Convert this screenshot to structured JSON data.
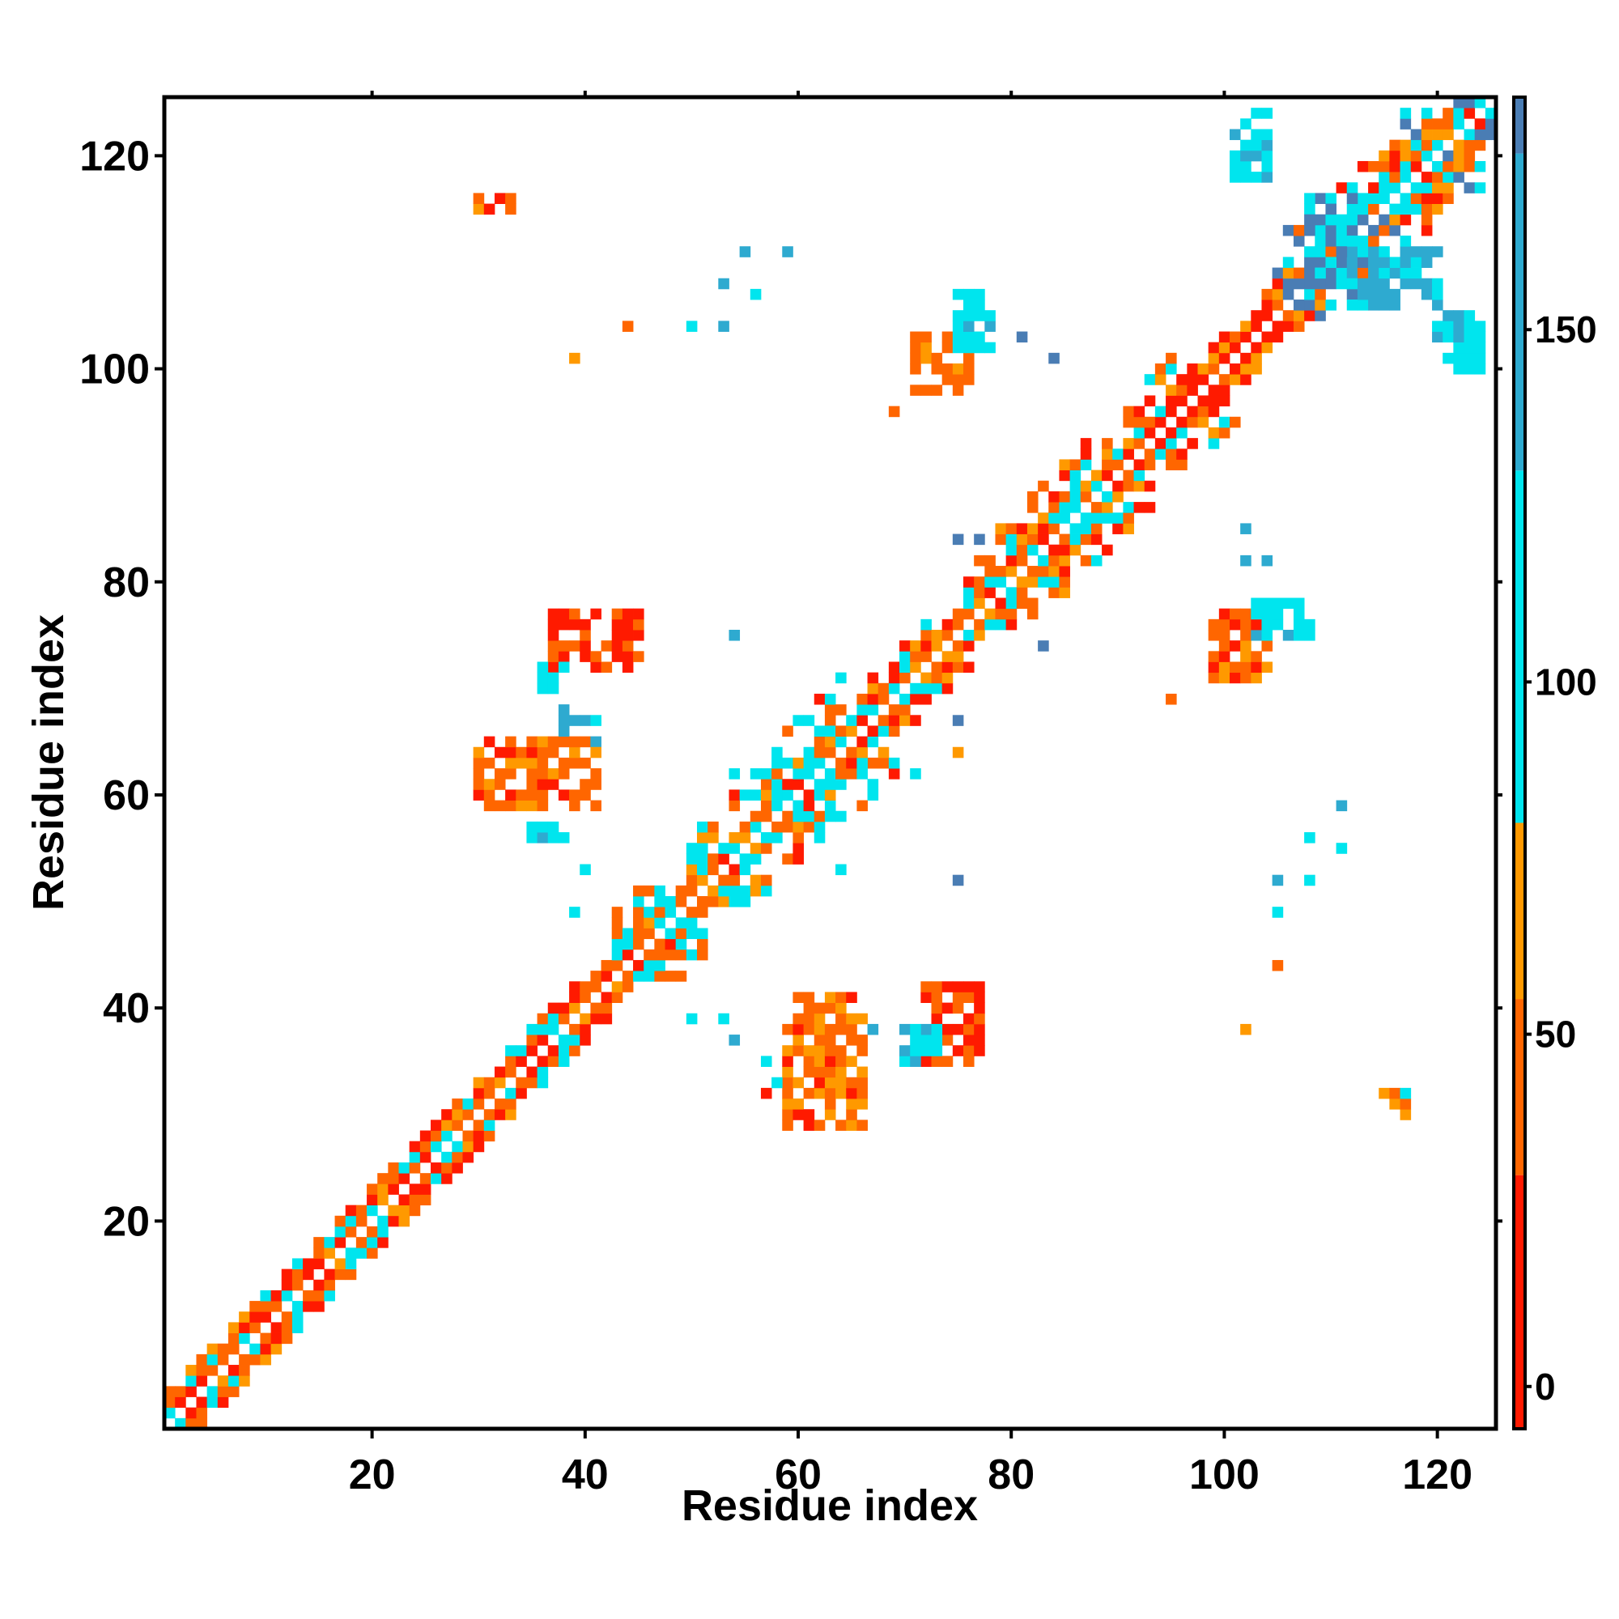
{
  "chart_data": {
    "type": "heatmap",
    "xlabel": "Residue index",
    "ylabel": "Residue index",
    "xlim": [
      1,
      125
    ],
    "ylim": [
      1,
      125
    ],
    "xticks": [
      20,
      40,
      60,
      80,
      100,
      120
    ],
    "yticks": [
      20,
      40,
      60,
      80,
      100,
      120
    ],
    "colorbar": {
      "range": [
        -6,
        183
      ],
      "ticks": [
        0,
        50,
        100,
        150
      ],
      "bands": [
        {
          "from": -6,
          "to": 30,
          "color": "#ff1a00"
        },
        {
          "from": 30,
          "to": 55,
          "color": "#ff6600"
        },
        {
          "from": 55,
          "to": 80,
          "color": "#ff9900"
        },
        {
          "from": 80,
          "to": 130,
          "color": "#00e5ee"
        },
        {
          "from": 130,
          "to": 175,
          "color": "#2eaad0"
        },
        {
          "from": 175,
          "to": 183,
          "color": "#4a7db4"
        }
      ]
    },
    "colors": {
      "red": "#ff1a00",
      "orange": "#ff6600",
      "amber": "#ff9900",
      "cyan": "#00e5ee",
      "skyblue": "#2eaad0",
      "steelblue": "#4a7db4"
    },
    "diagonal_bands": [
      {
        "from": 1,
        "to": 43,
        "mix": [
          "red",
          "orange",
          "orange",
          "amber",
          "red",
          "orange",
          "cyan"
        ],
        "width": 3
      },
      {
        "from": 43,
        "to": 63,
        "mix": [
          "orange",
          "cyan",
          "amber",
          "orange",
          "cyan",
          "red",
          "cyan"
        ],
        "width": 7
      },
      {
        "from": 63,
        "to": 76,
        "mix": [
          "red",
          "orange",
          "cyan",
          "amber",
          "orange"
        ],
        "width": 4
      },
      {
        "from": 76,
        "to": 95,
        "mix": [
          "orange",
          "cyan",
          "amber",
          "orange",
          "cyan",
          "red"
        ],
        "width": 6
      },
      {
        "from": 95,
        "to": 105,
        "mix": [
          "red",
          "orange",
          "amber",
          "red"
        ],
        "width": 3
      },
      {
        "from": 105,
        "to": 125,
        "mix": [
          "orange",
          "cyan",
          "amber",
          "red",
          "cyan",
          "steelblue"
        ],
        "width": 7
      }
    ],
    "off_diagonal_patches": [
      {
        "x": [
          30,
          33
        ],
        "y": [
          115,
          116
        ],
        "color": "orange"
      },
      {
        "x": [
          37,
          45
        ],
        "y": [
          72,
          77
        ],
        "color": "red"
      },
      {
        "x": [
          36,
          38
        ],
        "y": [
          70,
          72
        ],
        "color": "cyan"
      },
      {
        "x": [
          38,
          41
        ],
        "y": [
          65,
          68
        ],
        "color": "skyblue"
      },
      {
        "x": [
          30,
          41
        ],
        "y": [
          59,
          65
        ],
        "color": "orange"
      },
      {
        "x": [
          35,
          38
        ],
        "y": [
          56,
          57
        ],
        "color": "cyan"
      },
      {
        "x": [
          59,
          66
        ],
        "y": [
          29,
          41
        ],
        "color": "orange"
      },
      {
        "x": [
          72,
          77
        ],
        "y": [
          35,
          42
        ],
        "color": "red"
      },
      {
        "x": [
          70,
          73
        ],
        "y": [
          35,
          38
        ],
        "color": "cyan"
      },
      {
        "x": [
          99,
          104
        ],
        "y": [
          71,
          77
        ],
        "color": "orange"
      },
      {
        "x": [
          103,
          108
        ],
        "y": [
          75,
          78
        ],
        "color": "cyan"
      },
      {
        "x": [
          71,
          76
        ],
        "y": [
          98,
          103
        ],
        "color": "orange"
      },
      {
        "x": [
          75,
          78
        ],
        "y": [
          102,
          107
        ],
        "color": "cyan"
      },
      {
        "x": [
          101,
          104
        ],
        "y": [
          118,
          124
        ],
        "color": "cyan"
      },
      {
        "x": [
          108,
          113
        ],
        "y": [
          108,
          116
        ],
        "color": "steelblue"
      },
      {
        "x": [
          112,
          120
        ],
        "y": [
          106,
          111
        ],
        "color": "skyblue"
      },
      {
        "x": [
          120,
          124
        ],
        "y": [
          100,
          105
        ],
        "color": "cyan"
      },
      {
        "x": [
          115,
          117
        ],
        "y": [
          30,
          32
        ],
        "color": "orange"
      }
    ],
    "scattered_cells": [
      {
        "x": 69,
        "y": 96,
        "color": "orange"
      },
      {
        "x": 55,
        "y": 111,
        "color": "skyblue"
      },
      {
        "x": 59,
        "y": 111,
        "color": "skyblue"
      },
      {
        "x": 53,
        "y": 108,
        "color": "skyblue"
      },
      {
        "x": 56,
        "y": 107,
        "color": "cyan"
      },
      {
        "x": 44,
        "y": 104,
        "color": "orange"
      },
      {
        "x": 50,
        "y": 104,
        "color": "cyan"
      },
      {
        "x": 53,
        "y": 104,
        "color": "skyblue"
      },
      {
        "x": 39,
        "y": 101,
        "color": "amber"
      },
      {
        "x": 81,
        "y": 103,
        "color": "steelblue"
      },
      {
        "x": 84,
        "y": 101,
        "color": "steelblue"
      },
      {
        "x": 75,
        "y": 84,
        "color": "steelblue"
      },
      {
        "x": 77,
        "y": 84,
        "color": "steelblue"
      },
      {
        "x": 102,
        "y": 85,
        "color": "skyblue"
      },
      {
        "x": 102,
        "y": 82,
        "color": "skyblue"
      },
      {
        "x": 104,
        "y": 82,
        "color": "skyblue"
      },
      {
        "x": 95,
        "y": 69,
        "color": "orange"
      },
      {
        "x": 54,
        "y": 75,
        "color": "skyblue"
      },
      {
        "x": 83,
        "y": 74,
        "color": "steelblue"
      },
      {
        "x": 64,
        "y": 71,
        "color": "cyan"
      },
      {
        "x": 72,
        "y": 70,
        "color": "cyan"
      },
      {
        "x": 75,
        "y": 67,
        "color": "steelblue"
      },
      {
        "x": 75,
        "y": 64,
        "color": "amber"
      },
      {
        "x": 71,
        "y": 62,
        "color": "cyan"
      },
      {
        "x": 54,
        "y": 62,
        "color": "cyan"
      },
      {
        "x": 56,
        "y": 60,
        "color": "cyan"
      },
      {
        "x": 40,
        "y": 53,
        "color": "cyan"
      },
      {
        "x": 39,
        "y": 49,
        "color": "cyan"
      },
      {
        "x": 64,
        "y": 53,
        "color": "cyan"
      },
      {
        "x": 75,
        "y": 52,
        "color": "steelblue"
      },
      {
        "x": 111,
        "y": 59,
        "color": "skyblue"
      },
      {
        "x": 108,
        "y": 56,
        "color": "cyan"
      },
      {
        "x": 111,
        "y": 55,
        "color": "cyan"
      },
      {
        "x": 105,
        "y": 52,
        "color": "skyblue"
      },
      {
        "x": 108,
        "y": 52,
        "color": "cyan"
      },
      {
        "x": 105,
        "y": 49,
        "color": "cyan"
      },
      {
        "x": 105,
        "y": 44,
        "color": "orange"
      },
      {
        "x": 102,
        "y": 38,
        "color": "amber"
      },
      {
        "x": 50,
        "y": 39,
        "color": "cyan"
      },
      {
        "x": 53,
        "y": 39,
        "color": "cyan"
      },
      {
        "x": 54,
        "y": 37,
        "color": "skyblue"
      },
      {
        "x": 57,
        "y": 35,
        "color": "cyan"
      },
      {
        "x": 57,
        "y": 32,
        "color": "red"
      },
      {
        "x": 58,
        "y": 33,
        "color": "cyan"
      },
      {
        "x": 67,
        "y": 38,
        "color": "skyblue"
      },
      {
        "x": 117,
        "y": 32,
        "color": "cyan"
      }
    ]
  }
}
